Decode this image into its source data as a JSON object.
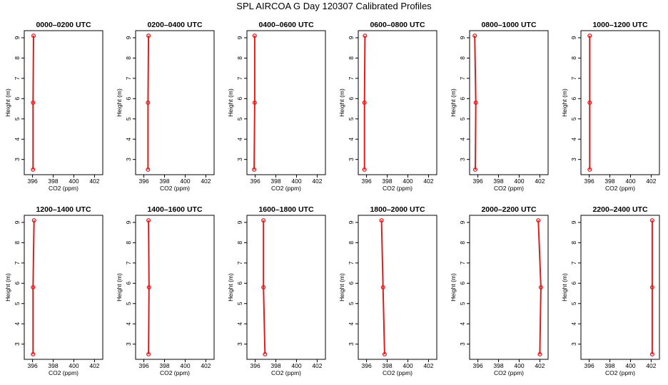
{
  "page": {
    "title": "SPL AIRCOA G  Day 120307  Calibrated Profiles"
  },
  "colors": {
    "profile": "#e31a1c",
    "axis": "#000000"
  },
  "chart_data": [
    {
      "type": "line",
      "title": "0000–0200 UTC",
      "xlabel": "CO2 (ppm)",
      "ylabel": "Height (m)",
      "xlim": [
        395.2,
        402.8
      ],
      "ylim": [
        2.25,
        9.35
      ],
      "xticks": [
        396,
        398,
        400,
        402
      ],
      "yticks": [
        3,
        4,
        5,
        6,
        7,
        8,
        9
      ],
      "series": [
        {
          "x": [
            396.05,
            396.05,
            396.1
          ],
          "y": [
            2.5,
            5.8,
            9.1
          ]
        }
      ]
    },
    {
      "type": "line",
      "title": "0200–0400 UTC",
      "xlabel": "CO2 (ppm)",
      "ylabel": "Height (m)",
      "xlim": [
        395.2,
        402.8
      ],
      "ylim": [
        2.25,
        9.35
      ],
      "xticks": [
        396,
        398,
        400,
        402
      ],
      "yticks": [
        3,
        4,
        5,
        6,
        7,
        8,
        9
      ],
      "series": [
        {
          "x": [
            396.4,
            396.4,
            396.45
          ],
          "y": [
            2.5,
            5.8,
            9.1
          ]
        }
      ]
    },
    {
      "type": "line",
      "title": "0400–0600 UTC",
      "xlabel": "CO2 (ppm)",
      "ylabel": "Height (m)",
      "xlim": [
        395.2,
        402.8
      ],
      "ylim": [
        2.25,
        9.35
      ],
      "xticks": [
        396,
        398,
        400,
        402
      ],
      "yticks": [
        3,
        4,
        5,
        6,
        7,
        8,
        9
      ],
      "series": [
        {
          "x": [
            395.9,
            395.95,
            395.95
          ],
          "y": [
            2.5,
            5.8,
            9.1
          ]
        }
      ]
    },
    {
      "type": "line",
      "title": "0600–0800 UTC",
      "xlabel": "CO2 (ppm)",
      "ylabel": "Height (m)",
      "xlim": [
        395.2,
        402.8
      ],
      "ylim": [
        2.25,
        9.35
      ],
      "xticks": [
        396,
        398,
        400,
        402
      ],
      "yticks": [
        3,
        4,
        5,
        6,
        7,
        8,
        9
      ],
      "series": [
        {
          "x": [
            395.8,
            395.8,
            395.85
          ],
          "y": [
            2.5,
            5.8,
            9.1
          ]
        }
      ]
    },
    {
      "type": "line",
      "title": "0800–1000 UTC",
      "xlabel": "CO2 (ppm)",
      "ylabel": "Height (m)",
      "xlim": [
        395.2,
        402.8
      ],
      "ylim": [
        2.25,
        9.35
      ],
      "xticks": [
        396,
        398,
        400,
        402
      ],
      "yticks": [
        3,
        4,
        5,
        6,
        7,
        8,
        9
      ],
      "series": [
        {
          "x": [
            395.75,
            395.8,
            395.7
          ],
          "y": [
            2.5,
            5.8,
            9.1
          ]
        }
      ]
    },
    {
      "type": "line",
      "title": "1000–1200 UTC",
      "xlabel": "CO2 (ppm)",
      "ylabel": "Height (m)",
      "xlim": [
        395.2,
        402.8
      ],
      "ylim": [
        2.25,
        9.35
      ],
      "xticks": [
        396,
        398,
        400,
        402
      ],
      "yticks": [
        3,
        4,
        5,
        6,
        7,
        8,
        9
      ],
      "series": [
        {
          "x": [
            396.05,
            396.05,
            396.05
          ],
          "y": [
            2.5,
            5.8,
            9.1
          ]
        }
      ]
    },
    {
      "type": "line",
      "title": "1200–1400 UTC",
      "xlabel": "CO2 (ppm)",
      "ylabel": "Height (m)",
      "xlim": [
        395.2,
        402.8
      ],
      "ylim": [
        2.25,
        9.35
      ],
      "xticks": [
        396,
        398,
        400,
        402
      ],
      "yticks": [
        3,
        4,
        5,
        6,
        7,
        8,
        9
      ],
      "series": [
        {
          "x": [
            396.05,
            396.05,
            396.15
          ],
          "y": [
            2.5,
            5.8,
            9.1
          ]
        }
      ]
    },
    {
      "type": "line",
      "title": "1400–1600 UTC",
      "xlabel": "CO2 (ppm)",
      "ylabel": "Height (m)",
      "xlim": [
        395.2,
        402.8
      ],
      "ylim": [
        2.25,
        9.35
      ],
      "xticks": [
        396,
        398,
        400,
        402
      ],
      "yticks": [
        3,
        4,
        5,
        6,
        7,
        8,
        9
      ],
      "series": [
        {
          "x": [
            396.45,
            396.5,
            396.45
          ],
          "y": [
            2.5,
            5.8,
            9.1
          ]
        }
      ]
    },
    {
      "type": "line",
      "title": "1600–1800 UTC",
      "xlabel": "CO2 (ppm)",
      "ylabel": "Height (m)",
      "xlim": [
        395.2,
        402.8
      ],
      "ylim": [
        2.25,
        9.35
      ],
      "xticks": [
        396,
        398,
        400,
        402
      ],
      "yticks": [
        3,
        4,
        5,
        6,
        7,
        8,
        9
      ],
      "series": [
        {
          "x": [
            396.95,
            396.8,
            396.8
          ],
          "y": [
            2.5,
            5.8,
            9.1
          ]
        }
      ]
    },
    {
      "type": "line",
      "title": "1800–2000 UTC",
      "xlabel": "CO2 (ppm)",
      "ylabel": "Height (m)",
      "xlim": [
        395.2,
        402.8
      ],
      "ylim": [
        2.25,
        9.35
      ],
      "xticks": [
        396,
        398,
        400,
        402
      ],
      "yticks": [
        3,
        4,
        5,
        6,
        7,
        8,
        9
      ],
      "series": [
        {
          "x": [
            397.75,
            397.6,
            397.45
          ],
          "y": [
            2.5,
            5.8,
            9.1
          ]
        }
      ]
    },
    {
      "type": "line",
      "title": "2000–2200 UTC",
      "xlabel": "CO2 (ppm)",
      "ylabel": "Height (m)",
      "xlim": [
        395.2,
        402.8
      ],
      "ylim": [
        2.25,
        9.35
      ],
      "xticks": [
        396,
        398,
        400,
        402
      ],
      "yticks": [
        3,
        4,
        5,
        6,
        7,
        8,
        9
      ],
      "series": [
        {
          "x": [
            402.0,
            402.1,
            401.85
          ],
          "y": [
            2.5,
            5.8,
            9.1
          ]
        }
      ]
    },
    {
      "type": "line",
      "title": "2200–2400 UTC",
      "xlabel": "CO2 (ppm)",
      "ylabel": "Height (m)",
      "xlim": [
        395.2,
        402.8
      ],
      "ylim": [
        2.25,
        9.35
      ],
      "xticks": [
        396,
        398,
        400,
        402
      ],
      "yticks": [
        3,
        4,
        5,
        6,
        7,
        8,
        9
      ],
      "series": [
        {
          "x": [
            402.1,
            402.1,
            402.1
          ],
          "y": [
            2.5,
            5.8,
            9.1
          ]
        }
      ]
    }
  ]
}
